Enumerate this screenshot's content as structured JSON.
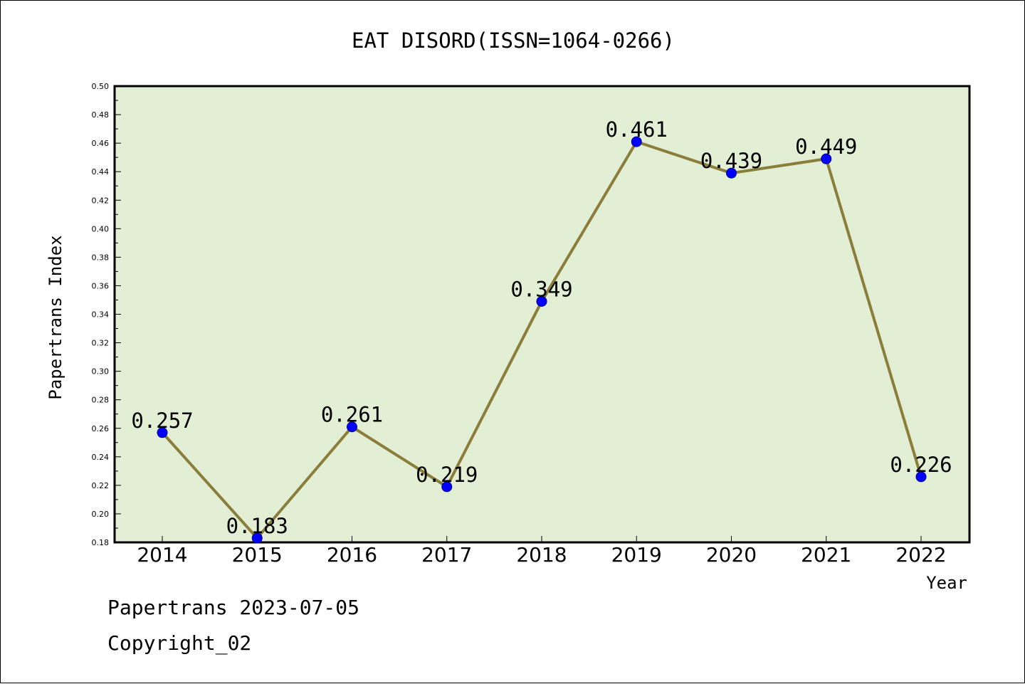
{
  "chart_data": {
    "type": "line",
    "title": "EAT DISORD(ISSN=1064-0266)",
    "xlabel": "Year",
    "ylabel": "Papertrans Index",
    "categories": [
      "2014",
      "2015",
      "2016",
      "2017",
      "2018",
      "2019",
      "2020",
      "2021",
      "2022"
    ],
    "values": [
      0.257,
      0.183,
      0.261,
      0.219,
      0.349,
      0.461,
      0.439,
      0.449,
      0.226
    ],
    "data_labels": [
      "0.257",
      "0.183",
      "0.261",
      "0.219",
      "0.349",
      "0.461",
      "0.439",
      "0.449",
      "0.226"
    ],
    "ylim": [
      0.18,
      0.5
    ],
    "y_ticks": [
      "0.18",
      "0.20",
      "0.22",
      "0.24",
      "0.26",
      "0.28",
      "0.30",
      "0.32",
      "0.34",
      "0.36",
      "0.38",
      "0.40",
      "0.42",
      "0.44",
      "0.46",
      "0.48",
      "0.50"
    ],
    "grid": false,
    "legend": "none",
    "colors": {
      "plot_background": "#e2efd5",
      "line": "#8b7d3a",
      "marker": "#0000ff"
    }
  },
  "footer": {
    "line1": "Papertrans 2023-07-05",
    "line2": "Copyright_02"
  }
}
